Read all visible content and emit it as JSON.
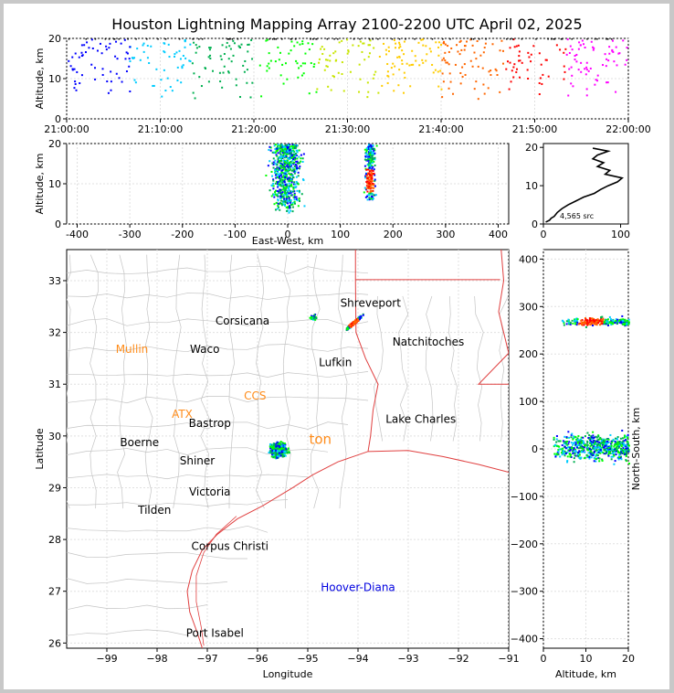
{
  "title": "Houston Lightning Mapping Array 2100-2200 UTC April 02, 2025",
  "colors": {
    "source_palette": [
      "#0000ff",
      "#00ccff",
      "#00b050",
      "#00ff00",
      "#c8e600",
      "#ffcc00",
      "#ff6600",
      "#ff0000",
      "#ff00ff"
    ],
    "coast": "#e04040",
    "county": "#c4c4c4",
    "city_label": "#000000",
    "site_label": "#ff8c1a",
    "special_label": "#0000e0",
    "panel_border": "#000000"
  },
  "annotation": {
    "source_count": "4,565 src"
  },
  "chart_data": [
    {
      "id": "time_altitude",
      "type": "scatter",
      "xlabel": "",
      "ylabel": "Altitude, km",
      "xlim": [
        "21:00:00",
        "22:00:00"
      ],
      "ylim": [
        0,
        20
      ],
      "x_ticks": [
        "21:00:00",
        "21:10:00",
        "21:20:00",
        "21:30:00",
        "21:40:00",
        "21:50:00",
        "22:00:00"
      ],
      "y_ticks": [
        0,
        10,
        20
      ],
      "grid": true,
      "points_note": "sources distributed across the full hour, altitude mostly 5-20 km"
    },
    {
      "id": "east_west_altitude",
      "type": "scatter",
      "xlabel": "East-West, km",
      "ylabel": "Altitude, km",
      "xlim": [
        -420,
        420
      ],
      "ylim": [
        0,
        20
      ],
      "x_ticks": [
        -400,
        -300,
        -200,
        -100,
        0,
        100,
        200,
        300,
        400
      ],
      "y_ticks": [
        0,
        10,
        20
      ],
      "grid": true,
      "clusters": [
        {
          "x_center": -5,
          "x_spread": 45,
          "alt_range": [
            3,
            20
          ]
        },
        {
          "x_center": 155,
          "x_spread": 15,
          "alt_range": [
            6,
            20
          ]
        }
      ]
    },
    {
      "id": "altitude_histogram",
      "type": "line",
      "xlabel": "",
      "ylabel": "",
      "xlim": [
        0,
        110
      ],
      "ylim": [
        0,
        21
      ],
      "x_ticks": [
        0,
        100
      ],
      "y_ticks": [
        0,
        10,
        20
      ],
      "series": [
        {
          "altitude_km": [
            0.5,
            1,
            1.5,
            2,
            3,
            4,
            5,
            6,
            7,
            8,
            9,
            10,
            11,
            12,
            13,
            14,
            15,
            16,
            17,
            18,
            19,
            19.8
          ],
          "count": [
            3,
            8,
            10,
            14,
            18,
            24,
            32,
            42,
            52,
            66,
            74,
            84,
            96,
            102,
            80,
            86,
            70,
            78,
            64,
            70,
            84,
            64
          ]
        }
      ]
    },
    {
      "id": "plan_view",
      "type": "scatter",
      "xlabel": "Longitude",
      "ylabel": "Latitude",
      "xlim": [
        -99.8,
        -91
      ],
      "ylim": [
        25.9,
        33.6
      ],
      "x_ticks": [
        -99,
        -98,
        -97,
        -96,
        -95,
        -94,
        -93,
        -92,
        -91
      ],
      "y_ticks": [
        26,
        27,
        28,
        29,
        30,
        31,
        32,
        33
      ],
      "grid": true,
      "clusters": [
        {
          "lon": -95.6,
          "lat": 29.75,
          "spread": 0.25
        },
        {
          "lon": -94.1,
          "lat": 32.2,
          "spread": 0.2
        },
        {
          "lon": -94.9,
          "lat": 32.3,
          "spread": 0.1
        }
      ],
      "place_labels": [
        {
          "text": "Shreveport",
          "lon": -93.75,
          "lat": 32.5,
          "kind": "city"
        },
        {
          "text": "Corsicana",
          "lon": -96.3,
          "lat": 32.15,
          "kind": "city"
        },
        {
          "text": "Natchitoches",
          "lon": -92.6,
          "lat": 31.75,
          "kind": "city"
        },
        {
          "text": "Mullin",
          "lon": -98.5,
          "lat": 31.6,
          "kind": "site"
        },
        {
          "text": "Waco",
          "lon": -97.05,
          "lat": 31.6,
          "kind": "city"
        },
        {
          "text": "Lufkin",
          "lon": -94.45,
          "lat": 31.35,
          "kind": "city"
        },
        {
          "text": "ATX",
          "lon": -97.5,
          "lat": 30.35,
          "kind": "site"
        },
        {
          "text": "Bastrop",
          "lon": -96.95,
          "lat": 30.17,
          "kind": "city"
        },
        {
          "text": "Lake Charles",
          "lon": -92.75,
          "lat": 30.25,
          "kind": "city"
        },
        {
          "text": "Boerne",
          "lon": -98.35,
          "lat": 29.8,
          "kind": "city"
        },
        {
          "text": "Shiner",
          "lon": -97.2,
          "lat": 29.45,
          "kind": "city"
        },
        {
          "text": "Victoria",
          "lon": -96.95,
          "lat": 28.85,
          "kind": "city"
        },
        {
          "text": "Tilden",
          "lon": -98.05,
          "lat": 28.5,
          "kind": "city"
        },
        {
          "text": "Corpus Christi",
          "lon": -96.55,
          "lat": 27.8,
          "kind": "city"
        },
        {
          "text": "Hoover-Diana",
          "lon": -94.0,
          "lat": 27.0,
          "kind": "special"
        },
        {
          "text": "Port Isabel",
          "lon": -96.85,
          "lat": 26.12,
          "kind": "city"
        },
        {
          "text": "ton",
          "lon": -94.75,
          "lat": 29.85,
          "kind": "site"
        },
        {
          "text": "CCS",
          "lon": -96.05,
          "lat": 30.7,
          "kind": "site"
        }
      ]
    },
    {
      "id": "altitude_north_south",
      "type": "scatter",
      "xlabel": "Altitude, km",
      "ylabel": "North-South, km",
      "xlim": [
        0,
        20
      ],
      "ylim": [
        -420,
        420
      ],
      "x_ticks": [
        0,
        10,
        20
      ],
      "y_ticks": [
        -400,
        -300,
        -200,
        -100,
        0,
        100,
        200,
        300,
        400
      ],
      "grid": true,
      "clusters": [
        {
          "y_center": 5,
          "y_spread": 45,
          "alt_range": [
            2,
            20
          ]
        },
        {
          "y_center": 270,
          "y_spread": 15,
          "alt_range": [
            4,
            20
          ]
        }
      ]
    }
  ]
}
